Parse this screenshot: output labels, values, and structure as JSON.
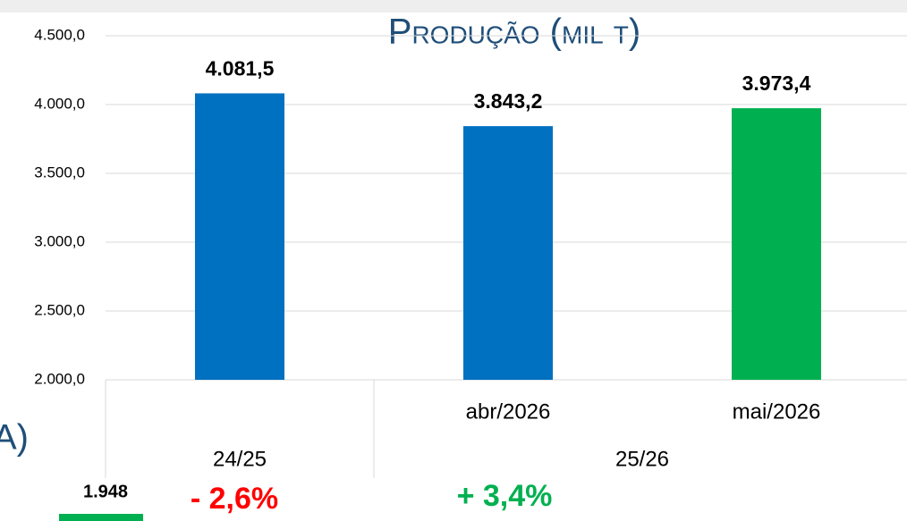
{
  "chart_data": {
    "type": "bar",
    "title": "Produção (mil t)",
    "categories": [
      null,
      "abr/2026",
      "mai/2026"
    ],
    "groups": [
      {
        "label": "24/25",
        "count": 1
      },
      {
        "label": "25/26",
        "count": 2
      }
    ],
    "values": [
      4081.5,
      3843.2,
      3973.4
    ],
    "value_labels": [
      "4.081,5",
      "3.843,2",
      "3.973,4"
    ],
    "colors": [
      "#0070c0",
      "#0070c0",
      "#00b050"
    ],
    "ylim": [
      2000,
      4500
    ],
    "yticks": [
      {
        "value": 2000,
        "label": "2.000,0"
      },
      {
        "value": 2500,
        "label": "2.500,0"
      },
      {
        "value": 3000,
        "label": "3.000,0"
      },
      {
        "value": 3500,
        "label": "3.500,0"
      },
      {
        "value": 4000,
        "label": "4.000,0"
      },
      {
        "value": 4500,
        "label": "4.500,0"
      }
    ],
    "grid": true
  },
  "annotations": [
    "A)",
    "1.948",
    "- 2,6%",
    "+ 3,4%"
  ]
}
